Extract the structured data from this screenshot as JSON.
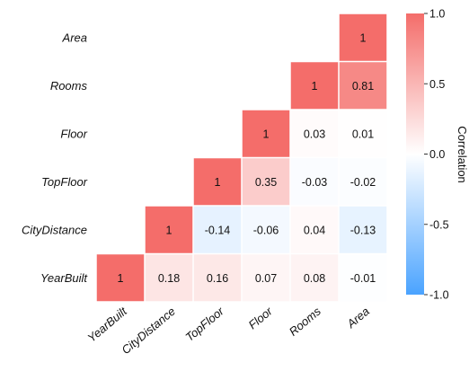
{
  "chart_data": {
    "type": "heatmap",
    "title": "",
    "variables": [
      "YearBuilt",
      "CityDistance",
      "TopFloor",
      "Floor",
      "Rooms",
      "Area"
    ],
    "row_labels_top_to_bottom": [
      "Area",
      "Rooms",
      "Floor",
      "TopFloor",
      "CityDistance",
      "YearBuilt"
    ],
    "col_labels_left_to_right": [
      "YearBuilt",
      "CityDistance",
      "TopFloor",
      "Floor",
      "Rooms",
      "Area"
    ],
    "matrix": [
      [
        null,
        null,
        null,
        null,
        null,
        1
      ],
      [
        null,
        null,
        null,
        null,
        1,
        0.81
      ],
      [
        null,
        null,
        null,
        1,
        0.03,
        0.01
      ],
      [
        null,
        null,
        1,
        0.35,
        -0.03,
        -0.02
      ],
      [
        null,
        1,
        -0.14,
        -0.06,
        0.04,
        -0.13
      ],
      [
        1,
        0.18,
        0.16,
        0.07,
        0.08,
        -0.01
      ]
    ],
    "value_labels": [
      [
        "",
        "",
        "",
        "",
        "",
        "1"
      ],
      [
        "",
        "",
        "",
        "",
        "1",
        "0.81"
      ],
      [
        "",
        "",
        "",
        "1",
        "0.03",
        "0.01"
      ],
      [
        "",
        "",
        "1",
        "0.35",
        "-0.03",
        "-0.02"
      ],
      [
        "",
        "1",
        "-0.14",
        "-0.06",
        "0.04",
        "-0.13"
      ],
      [
        "1",
        "0.18",
        "0.16",
        "0.07",
        "0.08",
        "-0.01"
      ]
    ],
    "colorbar": {
      "title": "Correlation",
      "range": [
        -1,
        1
      ],
      "ticks": [
        "1.0",
        "0.5",
        "0.0",
        "-0.5",
        "-1.0"
      ],
      "tick_values": [
        1,
        0.5,
        0,
        -0.5,
        -1
      ],
      "low_color": "#4aa3ff",
      "mid_color": "#ffffff",
      "high_color": "#f46d6a"
    }
  }
}
